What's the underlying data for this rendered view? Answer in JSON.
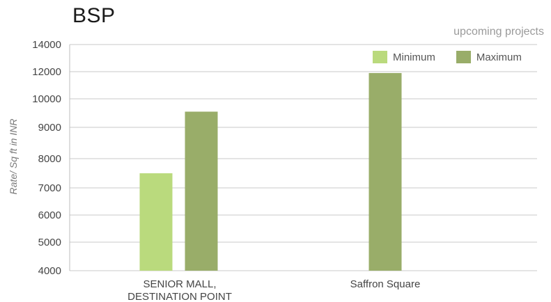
{
  "title": "BSP",
  "subtitle": "upcoming projects",
  "chart_data": {
    "type": "bar",
    "title": "BSP",
    "subtitle": "upcoming projects",
    "ylabel": "Rate/ Sq ft in INR",
    "xlabel": "",
    "y_ticks": [
      "4000",
      "5000",
      "6000",
      "7000",
      "8000",
      "9000",
      "10000",
      "12000",
      "14000"
    ],
    "categories": [
      [
        "SENIOR MALL,",
        "DESTINATION POINT"
      ],
      [
        "Saffron Square"
      ]
    ],
    "series": [
      {
        "name": "Minimum",
        "color": "#bada7d",
        "values": [
          7500,
          null
        ]
      },
      {
        "name": "Maximum",
        "color": "#99ad69",
        "values": [
          9550,
          11900
        ]
      }
    ],
    "legend_position": "top-right",
    "grid": true
  }
}
